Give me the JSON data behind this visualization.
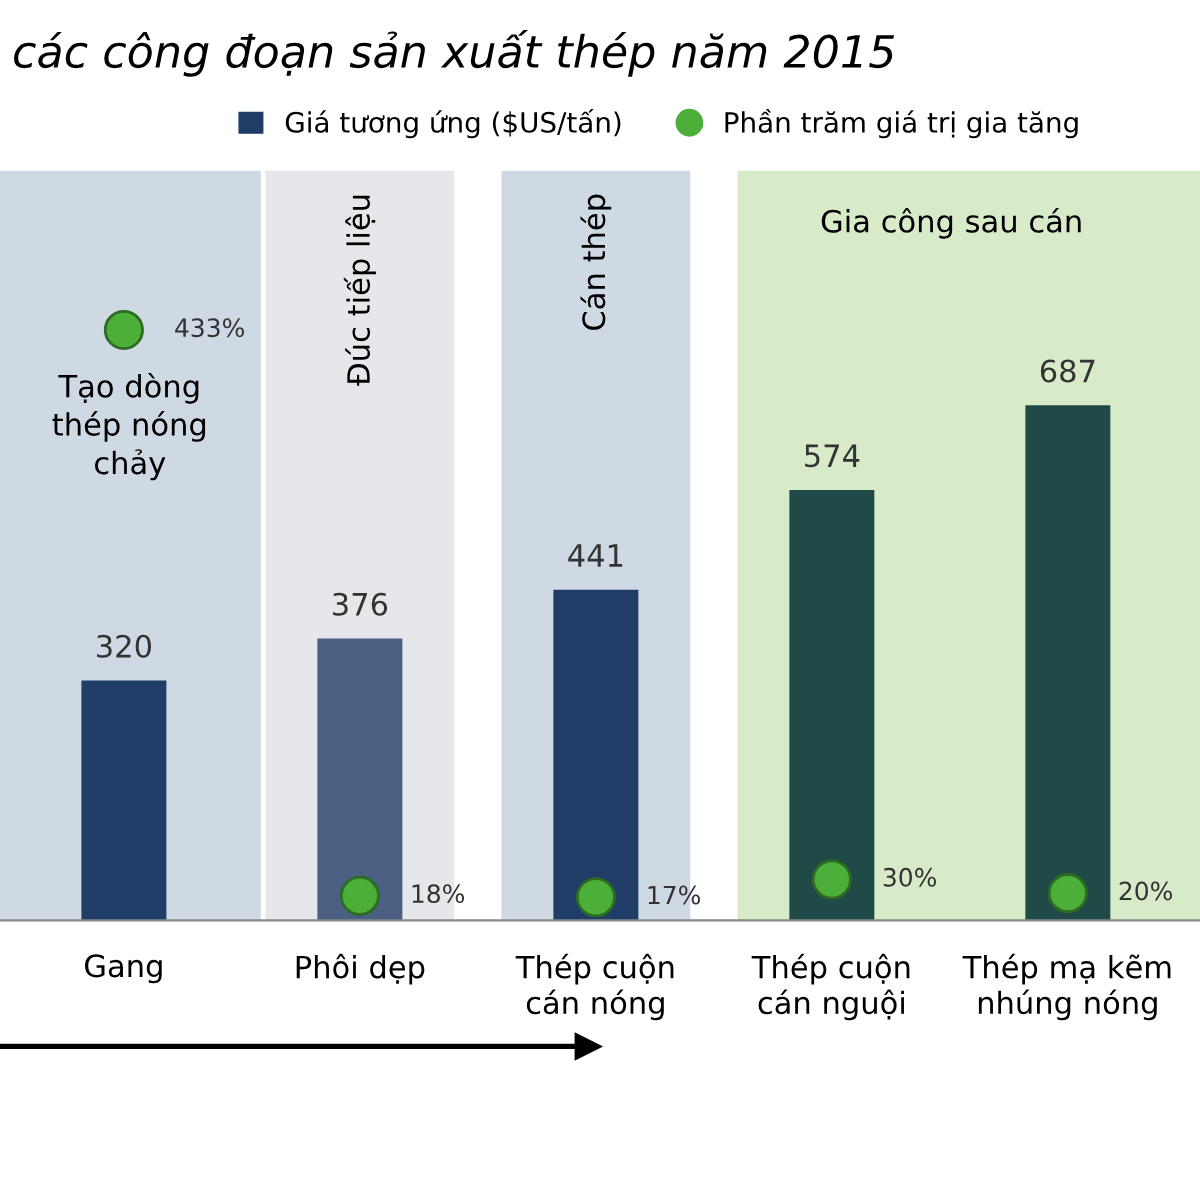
{
  "chart_data": {
    "type": "bar",
    "title": "các công đoạn sản xuất thép năm 2015",
    "categories": [
      "Gang",
      "Phôi dẹp",
      "Thép cuộn\ncán nóng",
      "Thép cuộn\ncán nguội",
      "Thép mạ kẽm\nnhúng nóng"
    ],
    "series": [
      {
        "name": "Giá tương ứng ($US/tấn)",
        "colors": [
          "#1f3d66",
          "#4a5f82",
          "#1f3d66",
          "#1f4a48",
          "#1f4a48"
        ],
        "color": "#1f3d66",
        "values": [
          320,
          376,
          441,
          574,
          687
        ],
        "value_labels": [
          "320",
          "376",
          "441",
          "574",
          "687"
        ]
      },
      {
        "name": "Phần trăm giá trị gia tăng",
        "type": "scatter",
        "axis": "y2",
        "color": "#4caf3a",
        "x": [
          "Gang",
          "Phôi dẹp",
          "Thép cuộn\ncán nóng",
          "Thép cuộn\ncán nguội",
          "Thép mạ kẽm\nnhúng nóng"
        ],
        "values": [
          433,
          18,
          17,
          30,
          20
        ],
        "value_labels": [
          "433%",
          "18%",
          "17%",
          "30%",
          "20%"
        ]
      }
    ],
    "ylim": [
      0,
      1000
    ],
    "y2lim": [
      0,
      550
    ],
    "tick_labels": "x",
    "legend": "top",
    "marker": "circle",
    "grid": false,
    "bands": [
      {
        "axis": "x",
        "from": "Gang",
        "to": "Gang",
        "label": "Tạo dòng\nthép nóng\nchảy",
        "color": "#cfd9e3"
      },
      {
        "axis": "x",
        "from": "Phôi dẹp",
        "to": "Phôi dẹp",
        "label": "Đúc tiếp liệu",
        "color": "#e6e7eb"
      },
      {
        "axis": "x",
        "from": "Thép cuộn\ncán nóng",
        "to": "Thép cuộn\ncán nóng",
        "label": "Cán thép",
        "color": "#cfd9e3"
      },
      {
        "axis": "x",
        "from": "Thép cuộn\ncán nguội",
        "to": "Thép mạ kẽm\nnhúng nóng",
        "label": "Gia công sau cán",
        "color": "#d8ebc8"
      }
    ]
  }
}
